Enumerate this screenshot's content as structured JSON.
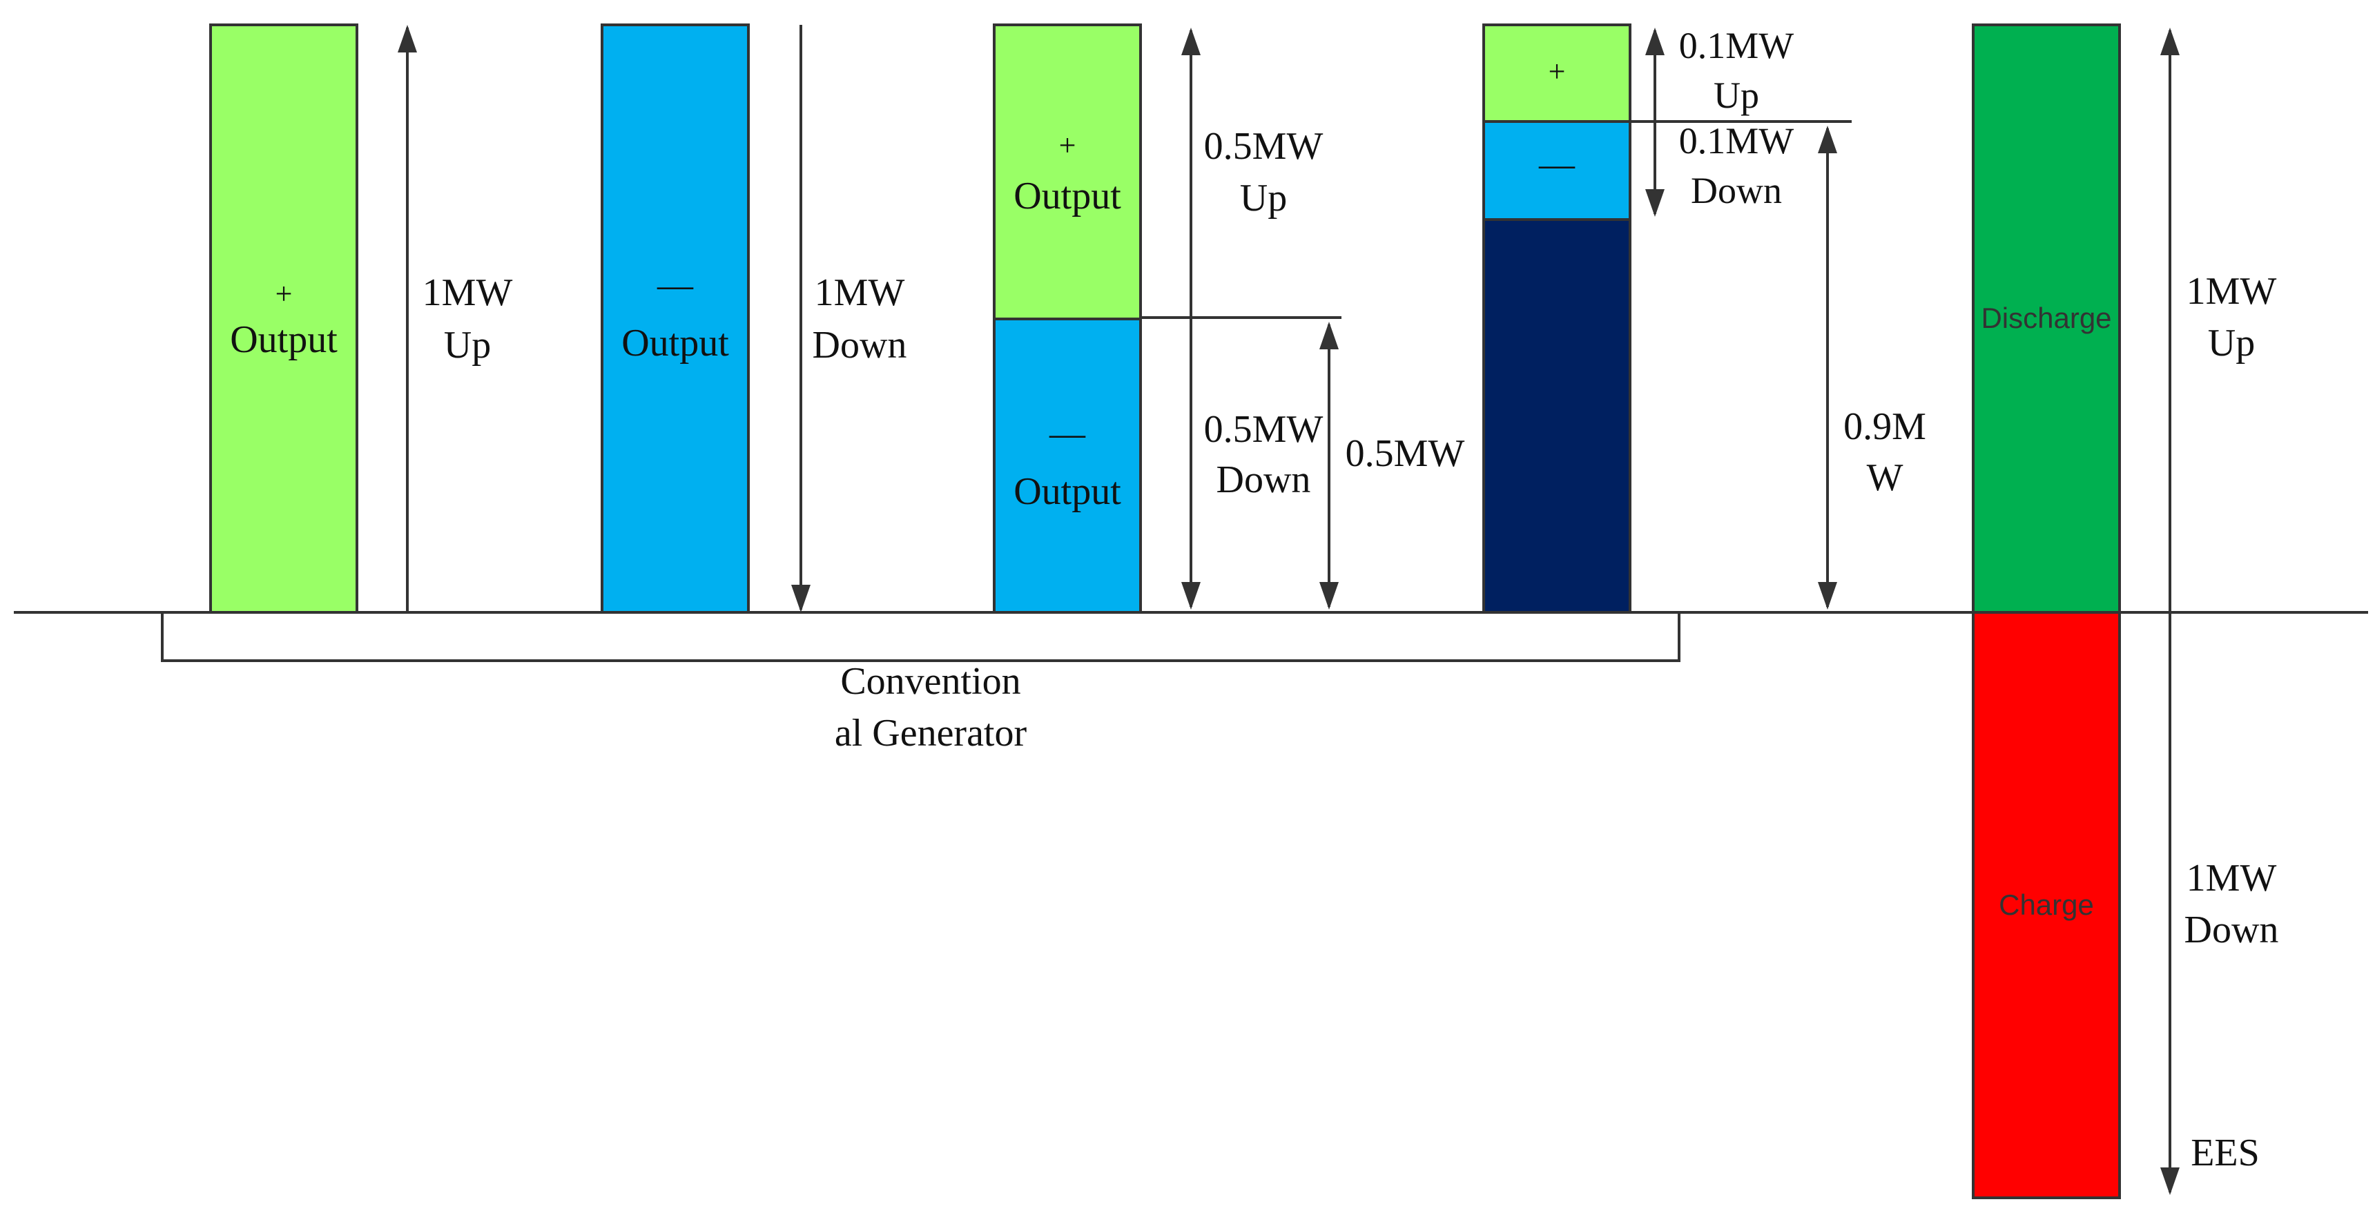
{
  "colors": {
    "up_green": "#99FF66",
    "down_blue": "#00B0F0",
    "navy": "#002060",
    "ees_green": "#00B050",
    "ees_red": "#FF0000",
    "line": "#333333"
  },
  "bar1": {
    "symbol": "+",
    "label": "Output"
  },
  "bar2": {
    "symbol": "—",
    "label": "Output"
  },
  "bar3_top": {
    "symbol": "+",
    "label": "Output"
  },
  "bar3_bottom": {
    "symbol": "—",
    "label": "Output"
  },
  "bar4_top": {
    "symbol": "+"
  },
  "bar4_mid": {
    "symbol": "—"
  },
  "ees_top": {
    "label": "Discharge"
  },
  "ees_bottom": {
    "label": "Charge"
  },
  "arrows": {
    "a1": {
      "line1": "1MW",
      "line2": "Up"
    },
    "a2": {
      "line1": "1MW",
      "line2": "Down"
    },
    "a3_up": {
      "line1": "0.5MW",
      "line2": "Up"
    },
    "a3_down": {
      "line1": "0.5MW",
      "line2": "Down"
    },
    "a3_side": {
      "line1": "0.5MW"
    },
    "a4_up": {
      "line1": "0.1MW",
      "line2": "Up"
    },
    "a4_down": {
      "line1": "0.1MW",
      "line2": "Down"
    },
    "a4_side": {
      "line1": "0.9M",
      "line2": "W"
    },
    "ees_up": {
      "line1": "1MW",
      "line2": "Up"
    },
    "ees_down": {
      "line1": "1MW",
      "line2": "Down"
    }
  },
  "group_label": {
    "line1": "Convention",
    "line2": "al Generator"
  },
  "ees_label": "EES"
}
